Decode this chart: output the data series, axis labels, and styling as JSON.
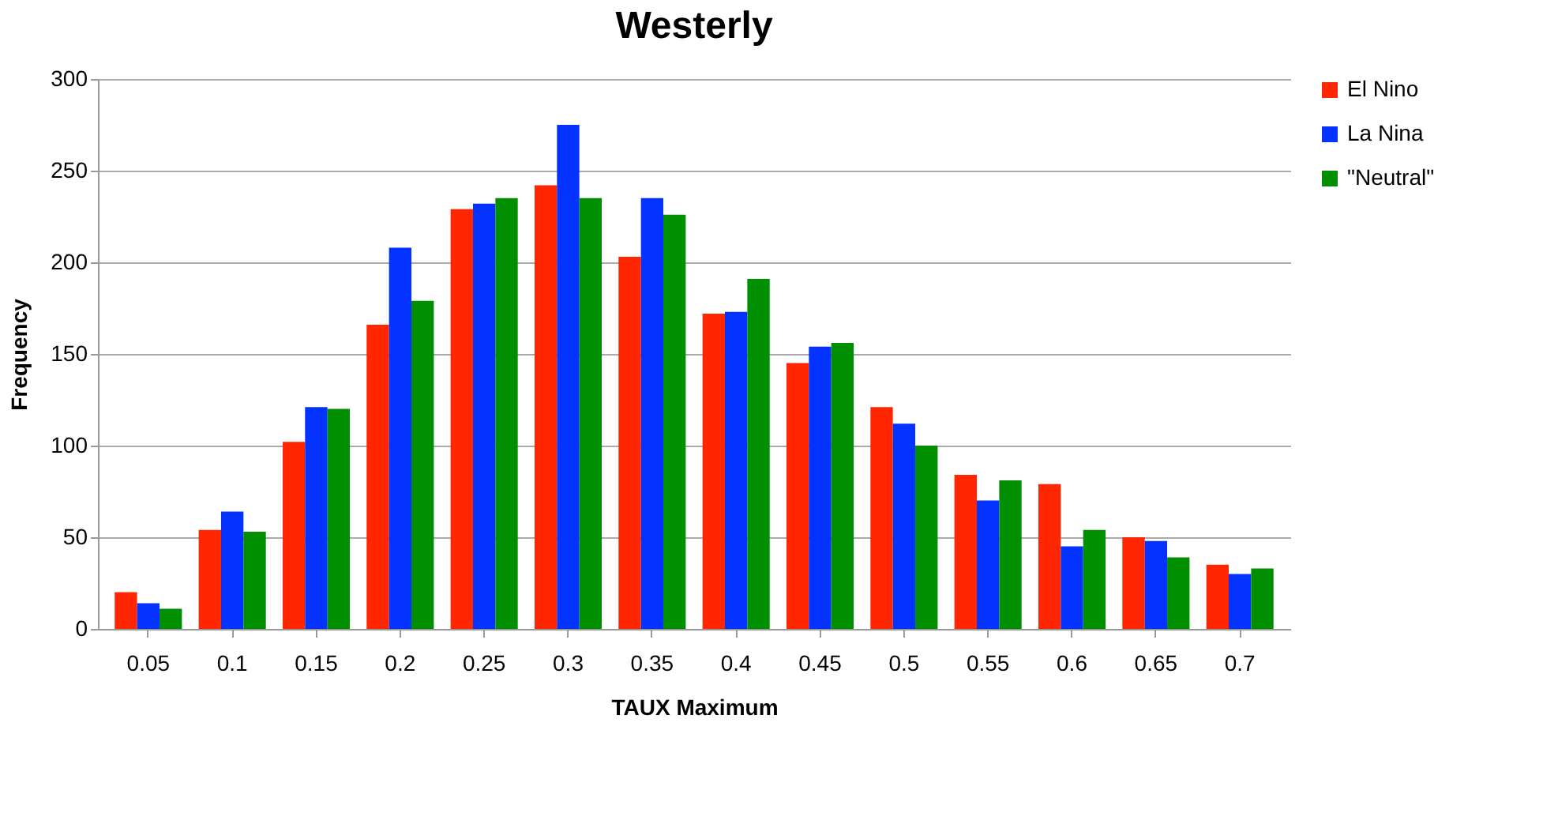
{
  "chart_data": {
    "type": "bar",
    "title": "Westerly",
    "xlabel": "TAUX Maximum",
    "ylabel": "Frequency",
    "categories": [
      "0.05",
      "0.1",
      "0.15",
      "0.2",
      "0.25",
      "0.3",
      "0.35",
      "0.4",
      "0.45",
      "0.5",
      "0.55",
      "0.6",
      "0.65",
      "0.7"
    ],
    "series": [
      {
        "name": "El Nino",
        "color": "#ff2600",
        "values": [
          20,
          54,
          102,
          166,
          229,
          242,
          203,
          172,
          145,
          121,
          84,
          79,
          50,
          35
        ]
      },
      {
        "name": "La Nina",
        "color": "#0433ff",
        "values": [
          14,
          64,
          121,
          208,
          232,
          275,
          235,
          173,
          154,
          112,
          70,
          45,
          48,
          30
        ]
      },
      {
        "name": "\"Neutral\"",
        "color": "#008f00",
        "values": [
          11,
          53,
          120,
          179,
          235,
          235,
          226,
          191,
          156,
          100,
          81,
          54,
          39,
          33
        ]
      }
    ],
    "ylim": [
      0,
      300
    ],
    "yticks": [
      0,
      50,
      100,
      150,
      200,
      250,
      300
    ],
    "grid": "y",
    "legend": "right"
  }
}
